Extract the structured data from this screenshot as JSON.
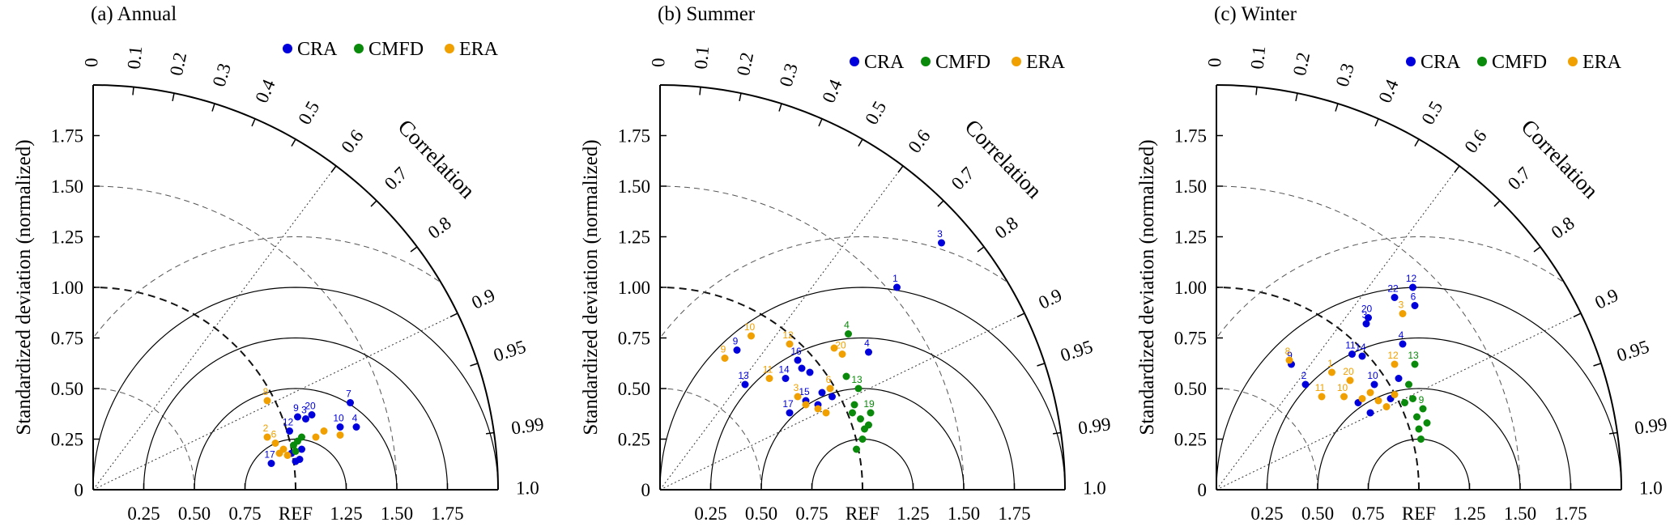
{
  "chart_data": [
    {
      "type": "scatter",
      "title": "(a) Annual",
      "ylabel": "Standardized deviation (normalized)",
      "arc_label": "Correlation",
      "ref_label": "REF",
      "y_ticks": [
        "0",
        "0.25",
        "0.50",
        "0.75",
        "1.00",
        "1.25",
        "1.50",
        "1.75"
      ],
      "x_ticks": [
        "0.25",
        "0.50",
        "0.75",
        "1.25",
        "1.50",
        "1.75"
      ],
      "corr_ticks": [
        "0",
        "0.1",
        "0.2",
        "0.3",
        "0.4",
        "0.5",
        "0.6",
        "0.7",
        "0.8",
        "0.9",
        "0.95",
        "0.99",
        "1.0"
      ],
      "legend": [
        "CRA",
        "CMFD",
        "ERA"
      ],
      "series": [
        {
          "name": "CRA",
          "color": "#0000dd",
          "points": [
            {
              "label": "17",
              "x": 0.88,
              "y": 0.13
            },
            {
              "label": "12",
              "x": 0.97,
              "y": 0.29
            },
            {
              "label": "9",
              "x": 1.01,
              "y": 0.36
            },
            {
              "label": "20",
              "x": 1.08,
              "y": 0.37
            },
            {
              "label": "3",
              "x": 1.05,
              "y": 0.35
            },
            {
              "label": "7",
              "x": 1.27,
              "y": 0.43
            },
            {
              "label": "10",
              "x": 1.22,
              "y": 0.31
            },
            {
              "label": "4",
              "x": 1.3,
              "y": 0.31
            },
            {
              "label": "",
              "x": 1.02,
              "y": 0.15
            },
            {
              "label": "",
              "x": 1.0,
              "y": 0.14
            },
            {
              "label": "",
              "x": 0.98,
              "y": 0.18
            },
            {
              "label": "",
              "x": 1.03,
              "y": 0.2
            }
          ]
        },
        {
          "name": "CMFD",
          "color": "#0a8a0a",
          "points": [
            {
              "label": "",
              "x": 0.99,
              "y": 0.22
            },
            {
              "label": "",
              "x": 1.01,
              "y": 0.24
            },
            {
              "label": "",
              "x": 1.03,
              "y": 0.26
            },
            {
              "label": "",
              "x": 1.0,
              "y": 0.19
            }
          ]
        },
        {
          "name": "ERA",
          "color": "#f0a000",
          "points": [
            {
              "label": "8",
              "x": 0.86,
              "y": 0.44
            },
            {
              "label": "2",
              "x": 0.86,
              "y": 0.26
            },
            {
              "label": "6",
              "x": 0.9,
              "y": 0.23
            },
            {
              "label": "",
              "x": 0.94,
              "y": 0.2
            },
            {
              "label": "",
              "x": 0.96,
              "y": 0.17
            },
            {
              "label": "",
              "x": 0.92,
              "y": 0.18
            },
            {
              "label": "",
              "x": 1.1,
              "y": 0.26
            },
            {
              "label": "",
              "x": 1.14,
              "y": 0.29
            },
            {
              "label": "",
              "x": 1.22,
              "y": 0.27
            }
          ]
        }
      ]
    },
    {
      "type": "scatter",
      "title": "(b) Summer",
      "ylabel": "Standardized deviation (normalized)",
      "arc_label": "Correlation",
      "ref_label": "REF",
      "y_ticks": [
        "0",
        "0.25",
        "0.50",
        "0.75",
        "1.00",
        "1.25",
        "1.50",
        "1.75"
      ],
      "x_ticks": [
        "0.25",
        "0.50",
        "0.75",
        "1.25",
        "1.50",
        "1.75"
      ],
      "corr_ticks": [
        "0",
        "0.1",
        "0.2",
        "0.3",
        "0.4",
        "0.5",
        "0.6",
        "0.7",
        "0.8",
        "0.9",
        "0.95",
        "0.99",
        "1.0"
      ],
      "legend": [
        "CRA",
        "CMFD",
        "ERA"
      ],
      "series": [
        {
          "name": "CRA",
          "color": "#0000dd",
          "points": [
            {
              "label": "3",
              "x": 1.39,
              "y": 1.22
            },
            {
              "label": "1",
              "x": 1.17,
              "y": 1.0
            },
            {
              "label": "9",
              "x": 0.38,
              "y": 0.69
            },
            {
              "label": "13",
              "x": 0.42,
              "y": 0.52
            },
            {
              "label": "16",
              "x": 0.68,
              "y": 0.64
            },
            {
              "label": "14",
              "x": 0.62,
              "y": 0.55
            },
            {
              "label": "4",
              "x": 1.03,
              "y": 0.68
            },
            {
              "label": "17",
              "x": 0.64,
              "y": 0.38
            },
            {
              "label": "15",
              "x": 0.72,
              "y": 0.44
            },
            {
              "label": "",
              "x": 0.7,
              "y": 0.6
            },
            {
              "label": "",
              "x": 0.74,
              "y": 0.58
            },
            {
              "label": "",
              "x": 0.8,
              "y": 0.48
            },
            {
              "label": "",
              "x": 0.85,
              "y": 0.46
            },
            {
              "label": "",
              "x": 0.78,
              "y": 0.42
            }
          ]
        },
        {
          "name": "CMFD",
          "color": "#0a8a0a",
          "points": [
            {
              "label": "4",
              "x": 0.93,
              "y": 0.77
            },
            {
              "label": "13",
              "x": 0.98,
              "y": 0.5
            },
            {
              "label": "19",
              "x": 1.04,
              "y": 0.38
            },
            {
              "label": "",
              "x": 0.92,
              "y": 0.56
            },
            {
              "label": "",
              "x": 0.96,
              "y": 0.42
            },
            {
              "label": "",
              "x": 0.99,
              "y": 0.35
            },
            {
              "label": "",
              "x": 1.01,
              "y": 0.3
            },
            {
              "label": "",
              "x": 1.0,
              "y": 0.25
            },
            {
              "label": "",
              "x": 0.97,
              "y": 0.2
            },
            {
              "label": "",
              "x": 1.03,
              "y": 0.32
            },
            {
              "label": "",
              "x": 0.95,
              "y": 0.38
            }
          ]
        },
        {
          "name": "ERA",
          "color": "#f0a000",
          "points": [
            {
              "label": "10",
              "x": 0.45,
              "y": 0.76
            },
            {
              "label": "9",
              "x": 0.32,
              "y": 0.65
            },
            {
              "label": "12",
              "x": 0.64,
              "y": 0.72
            },
            {
              "label": "20",
              "x": 0.9,
              "y": 0.67
            },
            {
              "label": "11",
              "x": 0.54,
              "y": 0.55
            },
            {
              "label": "3",
              "x": 0.68,
              "y": 0.46
            },
            {
              "label": "6",
              "x": 0.84,
              "y": 0.5
            },
            {
              "label": "",
              "x": 0.72,
              "y": 0.42
            },
            {
              "label": "",
              "x": 0.78,
              "y": 0.4
            },
            {
              "label": "",
              "x": 0.82,
              "y": 0.38
            },
            {
              "label": "",
              "x": 0.86,
              "y": 0.7
            }
          ]
        }
      ]
    },
    {
      "type": "scatter",
      "title": "(c) Winter",
      "ylabel": "Standardized deviation (normalized)",
      "arc_label": "Correlation",
      "ref_label": "REF",
      "y_ticks": [
        "0",
        "0.25",
        "0.50",
        "0.75",
        "1.00",
        "1.25",
        "1.50",
        "1.75"
      ],
      "x_ticks": [
        "0.25",
        "0.50",
        "0.75",
        "1.25",
        "1.50",
        "1.75"
      ],
      "corr_ticks": [
        "0",
        "0.1",
        "0.2",
        "0.3",
        "0.4",
        "0.5",
        "0.6",
        "0.7",
        "0.8",
        "0.9",
        "0.95",
        "0.99",
        "1.0"
      ],
      "legend": [
        "CRA",
        "CMFD",
        "ERA"
      ],
      "series": [
        {
          "name": "CRA",
          "color": "#0000dd",
          "points": [
            {
              "label": "12",
              "x": 0.97,
              "y": 1.0
            },
            {
              "label": "22",
              "x": 0.88,
              "y": 0.95
            },
            {
              "label": "6",
              "x": 0.98,
              "y": 0.91
            },
            {
              "label": "20",
              "x": 0.75,
              "y": 0.85
            },
            {
              "label": "3",
              "x": 0.74,
              "y": 0.82
            },
            {
              "label": "4",
              "x": 0.92,
              "y": 0.72
            },
            {
              "label": "11",
              "x": 0.67,
              "y": 0.67
            },
            {
              "label": "14",
              "x": 0.72,
              "y": 0.66
            },
            {
              "label": "9",
              "x": 0.37,
              "y": 0.62
            },
            {
              "label": "2",
              "x": 0.44,
              "y": 0.52
            },
            {
              "label": "10",
              "x": 0.78,
              "y": 0.52
            },
            {
              "label": "",
              "x": 0.7,
              "y": 0.43
            },
            {
              "label": "",
              "x": 0.76,
              "y": 0.38
            },
            {
              "label": "",
              "x": 0.86,
              "y": 0.45
            },
            {
              "label": "",
              "x": 0.9,
              "y": 0.55
            }
          ]
        },
        {
          "name": "CMFD",
          "color": "#0a8a0a",
          "points": [
            {
              "label": "13",
              "x": 0.98,
              "y": 0.62
            },
            {
              "label": "9",
              "x": 1.02,
              "y": 0.4
            },
            {
              "label": "",
              "x": 0.95,
              "y": 0.52
            },
            {
              "label": "",
              "x": 0.97,
              "y": 0.45
            },
            {
              "label": "",
              "x": 0.99,
              "y": 0.36
            },
            {
              "label": "",
              "x": 1.0,
              "y": 0.3
            },
            {
              "label": "",
              "x": 1.01,
              "y": 0.25
            },
            {
              "label": "",
              "x": 0.93,
              "y": 0.43
            },
            {
              "label": "",
              "x": 1.04,
              "y": 0.33
            }
          ]
        },
        {
          "name": "ERA",
          "color": "#f0a000",
          "points": [
            {
              "label": "1",
              "x": 0.57,
              "y": 0.58
            },
            {
              "label": "20",
              "x": 0.66,
              "y": 0.54
            },
            {
              "label": "11",
              "x": 0.52,
              "y": 0.46
            },
            {
              "label": "10",
              "x": 0.63,
              "y": 0.46
            },
            {
              "label": "12",
              "x": 0.88,
              "y": 0.62
            },
            {
              "label": "3",
              "x": 0.92,
              "y": 0.87
            },
            {
              "label": "8",
              "x": 0.36,
              "y": 0.64
            },
            {
              "label": "",
              "x": 0.76,
              "y": 0.48
            },
            {
              "label": "",
              "x": 0.8,
              "y": 0.44
            },
            {
              "label": "",
              "x": 0.84,
              "y": 0.41
            },
            {
              "label": "",
              "x": 0.88,
              "y": 0.47
            },
            {
              "label": "",
              "x": 0.72,
              "y": 0.45
            }
          ]
        }
      ]
    }
  ]
}
